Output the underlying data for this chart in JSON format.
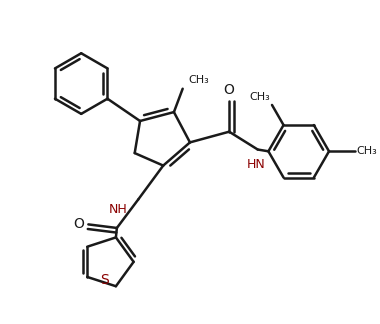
{
  "background_color": "#ffffff",
  "line_color": "#1a1a1a",
  "bond_width": 1.8,
  "figsize": [
    3.8,
    3.24
  ],
  "dpi": 100,
  "xlim": [
    0,
    10
  ],
  "ylim": [
    0,
    8.5
  ]
}
